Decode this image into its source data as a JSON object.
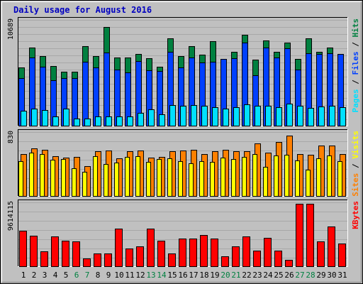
{
  "title": "Daily usage for August 2016",
  "colors": {
    "frame_bg": "#c0c0c0",
    "title": "#0000c0",
    "hits": "#008040",
    "files": "#0040ff",
    "pages": "#00e0ff",
    "visits": "#ffff00",
    "sites": "#ff8000",
    "kbytes": "#ff0000",
    "weekday_label": "#000000",
    "weekend_label": "#008040"
  },
  "chart_data": [
    {
      "type": "bar",
      "panel": "traffic",
      "ymax_label": "10689",
      "ylim": [
        0,
        10689
      ],
      "x_labels": [
        "1",
        "2",
        "3",
        "4",
        "5",
        "6",
        "7",
        "8",
        "9",
        "10",
        "11",
        "12",
        "13",
        "14",
        "15",
        "16",
        "17",
        "18",
        "19",
        "20",
        "21",
        "22",
        "23",
        "24",
        "25",
        "26",
        "27",
        "28",
        "29",
        "30",
        "31"
      ],
      "weekend_days": [
        6,
        7,
        13,
        14,
        20,
        21,
        27,
        28
      ],
      "legend": [
        "Pages",
        "Files",
        "Hits"
      ],
      "series": [
        {
          "name": "Hits",
          "color_key": "hits",
          "values": [
            6010,
            8040,
            7180,
            6160,
            5540,
            5580,
            8140,
            7180,
            10140,
            7000,
            6980,
            7360,
            6930,
            6050,
            8940,
            7120,
            8140,
            7290,
            8640,
            6620,
            7560,
            9330,
            6800,
            8740,
            7560,
            8540,
            6880,
            8930,
            7560,
            7990,
            6010
          ]
        },
        {
          "name": "Files",
          "color_key": "files",
          "values": [
            4920,
            7020,
            6080,
            4730,
            4880,
            4880,
            6580,
            5990,
            7520,
            5770,
            5470,
            6630,
            5690,
            5630,
            7570,
            5980,
            7020,
            6520,
            6560,
            6830,
            6900,
            8520,
            5220,
            8040,
            7020,
            7920,
            5790,
            7410,
            7370,
            7410,
            7400
          ]
        },
        {
          "name": "Pages",
          "color_key": "pages",
          "values": [
            1590,
            1820,
            1690,
            1020,
            1780,
            780,
            780,
            1020,
            1030,
            990,
            1040,
            1380,
            1700,
            1200,
            2140,
            2080,
            2170,
            2080,
            1980,
            1820,
            1970,
            2220,
            2120,
            2120,
            1980,
            2280,
            2080,
            1880,
            2030,
            2130,
            1930
          ]
        }
      ]
    },
    {
      "type": "bar",
      "panel": "visitors",
      "ymax_label": "830",
      "ylim": [
        0,
        830
      ],
      "legend": [
        "Sites",
        "Visits"
      ],
      "series": [
        {
          "name": "Sites",
          "color_key": "sites",
          "values": [
            560,
            630,
            612,
            536,
            515,
            520,
            405,
            600,
            607,
            505,
            600,
            610,
            515,
            525,
            600,
            610,
            620,
            555,
            600,
            620,
            600,
            600,
            700,
            575,
            715,
            800,
            555,
            550,
            670,
            675,
            560
          ]
        },
        {
          "name": "Visits",
          "color_key": "visits",
          "values": [
            468,
            580,
            560,
            487,
            494,
            375,
            324,
            530,
            430,
            450,
            520,
            535,
            455,
            490,
            500,
            470,
            435,
            470,
            460,
            510,
            490,
            520,
            555,
            390,
            545,
            550,
            475,
            350,
            500,
            540,
            470
          ]
        }
      ]
    },
    {
      "type": "bar",
      "panel": "kbytes",
      "ymax_label": "9614115",
      "ylim": [
        0,
        9614115
      ],
      "legend": [
        "KBytes"
      ],
      "series": [
        {
          "name": "KBytes",
          "color_key": "kbytes",
          "values": [
            5550000,
            4780000,
            2350000,
            4680000,
            4020000,
            3920000,
            1310000,
            2080000,
            2080000,
            5880000,
            2810000,
            3090000,
            5880000,
            4030000,
            2070000,
            4310000,
            4330000,
            4820000,
            4320000,
            1630000,
            3150000,
            4670000,
            2500000,
            4390000,
            2500000,
            1100000,
            9614115,
            9614115,
            3920000,
            6190000,
            3570000
          ]
        }
      ]
    }
  ]
}
